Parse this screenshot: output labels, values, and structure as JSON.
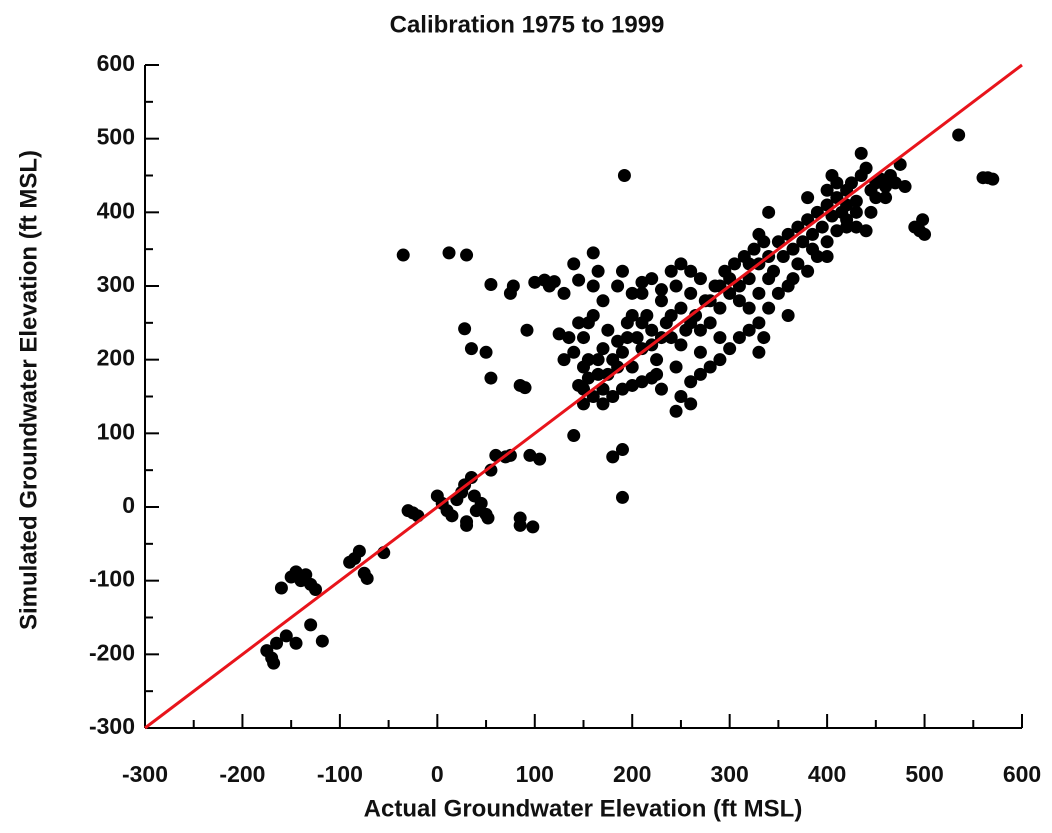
{
  "chart_data": {
    "type": "scatter",
    "title": "Calibration 1975 to 1999",
    "xlabel": "Actual Groundwater Elevation (ft MSL)",
    "ylabel": "Simulated Groundwater Elevation (ft MSL)",
    "xlim": [
      -300,
      600
    ],
    "ylim": [
      -300,
      600
    ],
    "xticks": [
      -300,
      -200,
      -100,
      0,
      100,
      200,
      300,
      400,
      500,
      600
    ],
    "yticks": [
      -300,
      -200,
      -100,
      0,
      100,
      200,
      300,
      400,
      500,
      600
    ],
    "xminorticks": [
      -250,
      -150,
      -50,
      50,
      150,
      250,
      350,
      450,
      550
    ],
    "yminorticks": [
      -250,
      -150,
      -50,
      50,
      150,
      250,
      350,
      450,
      550
    ],
    "color": "#000000",
    "reference_line": {
      "x": [
        -300,
        600
      ],
      "y": [
        -300,
        600
      ],
      "color": "#e8141b"
    },
    "x": [
      -175,
      -170,
      -168,
      -165,
      -160,
      -155,
      -150,
      -145,
      -145,
      -140,
      -135,
      -130,
      -125,
      -130,
      -118,
      -90,
      -85,
      -80,
      -75,
      -72,
      -55,
      -30,
      -25,
      -20,
      0,
      5,
      10,
      15,
      20,
      25,
      28,
      30,
      35,
      40,
      45,
      50,
      52,
      38,
      60,
      70,
      75,
      55,
      30,
      85,
      85,
      98,
      95,
      105,
      -35,
      12,
      30,
      28,
      35,
      55,
      55,
      50,
      75,
      78,
      85,
      90,
      92,
      100,
      110,
      115,
      120,
      130,
      140,
      145,
      140,
      180,
      190,
      190,
      192,
      160,
      150,
      155,
      160,
      165,
      170,
      175,
      180,
      185,
      190,
      195,
      200,
      205,
      210,
      215,
      220,
      225,
      230,
      235,
      240,
      245,
      250,
      255,
      260,
      265,
      270,
      275,
      280,
      285,
      290,
      295,
      300,
      305,
      310,
      315,
      320,
      325,
      330,
      335,
      340,
      345,
      350,
      355,
      360,
      365,
      370,
      375,
      380,
      385,
      390,
      395,
      400,
      405,
      410,
      415,
      420,
      425,
      430,
      435,
      440,
      445,
      450,
      455,
      460,
      465,
      470,
      475,
      480,
      490,
      495,
      498,
      500,
      535,
      560,
      565,
      570,
      435,
      400,
      400,
      410,
      420,
      430,
      440,
      380,
      360,
      350,
      340,
      330,
      320,
      310,
      300,
      290,
      280,
      270,
      260,
      250,
      245,
      230,
      220,
      210,
      200,
      190,
      180,
      170,
      160,
      150,
      145,
      155,
      165,
      175,
      185,
      195,
      200,
      210,
      220,
      230,
      240,
      250,
      260,
      210,
      220,
      230,
      240,
      250,
      260,
      270,
      280,
      290,
      300,
      310,
      320,
      330,
      340,
      185,
      190,
      200,
      210,
      150,
      155,
      160,
      170,
      165,
      140,
      135,
      145,
      125,
      130,
      150,
      170,
      260,
      245,
      225,
      270,
      290,
      330,
      335,
      360,
      320,
      365,
      390,
      370,
      420,
      410,
      400,
      450,
      380,
      385,
      420,
      430,
      445,
      460,
      405,
      340,
      330
    ],
    "values": [
      -195,
      -205,
      -212,
      -185,
      -110,
      -175,
      -95,
      -88,
      -185,
      -100,
      -92,
      -105,
      -112,
      -160,
      -182,
      -75,
      -70,
      -60,
      -90,
      -97,
      -62,
      -5,
      -8,
      -12,
      15,
      5,
      -5,
      -12,
      10,
      20,
      30,
      -20,
      40,
      -5,
      5,
      -10,
      -15,
      15,
      70,
      68,
      70,
      50,
      -25,
      -15,
      -25,
      -27,
      70,
      65,
      342,
      345,
      342,
      242,
      215,
      302,
      175,
      210,
      290,
      300,
      165,
      162,
      240,
      305,
      308,
      300,
      306,
      290,
      330,
      308,
      97,
      68,
      78,
      13,
      450,
      345,
      230,
      200,
      260,
      180,
      215,
      240,
      200,
      225,
      210,
      250,
      190,
      230,
      215,
      260,
      240,
      200,
      280,
      250,
      230,
      300,
      270,
      240,
      290,
      260,
      310,
      280,
      250,
      300,
      270,
      320,
      290,
      330,
      300,
      340,
      310,
      350,
      330,
      360,
      340,
      320,
      360,
      340,
      370,
      350,
      380,
      360,
      390,
      370,
      400,
      380,
      410,
      395,
      420,
      400,
      430,
      440,
      415,
      450,
      460,
      430,
      440,
      445,
      435,
      450,
      440,
      465,
      435,
      380,
      375,
      390,
      370,
      505,
      447,
      447,
      445,
      480,
      360,
      340,
      375,
      380,
      380,
      375,
      320,
      300,
      290,
      270,
      250,
      240,
      230,
      215,
      200,
      190,
      180,
      170,
      150,
      130,
      160,
      175,
      170,
      165,
      160,
      150,
      140,
      150,
      140,
      165,
      175,
      200,
      180,
      190,
      230,
      260,
      290,
      310,
      295,
      320,
      330,
      320,
      250,
      220,
      230,
      260,
      220,
      250,
      240,
      280,
      300,
      310,
      280,
      330,
      290,
      310,
      300,
      320,
      290,
      305,
      190,
      250,
      300,
      280,
      320,
      210,
      230,
      250,
      235,
      200,
      160,
      160,
      140,
      190,
      180,
      210,
      230,
      210,
      230,
      260,
      270,
      310,
      340,
      330,
      410,
      440,
      430,
      420,
      420,
      350,
      390,
      400,
      400,
      420,
      450,
      400,
      370
    ]
  }
}
